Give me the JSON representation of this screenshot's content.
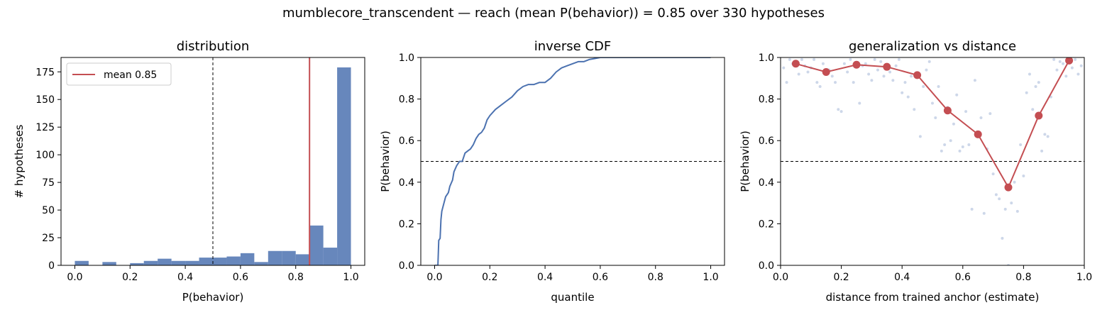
{
  "suptitle": "mumblecore_transcendent  —  reach (mean P(behavior)) = 0.85  over 330 hypotheses",
  "colors": {
    "blue": "#4c72b0",
    "red": "#c44e52",
    "scatter": "#b8c6e0"
  },
  "chart_data": [
    {
      "type": "bar",
      "title": "distribution",
      "xlabel": "P(behavior)",
      "ylabel": "# hypotheses",
      "xlim": [
        -0.05,
        1.05
      ],
      "ylim": [
        0,
        188
      ],
      "xticks": [
        "0.0",
        "0.2",
        "0.4",
        "0.6",
        "0.8",
        "1.0"
      ],
      "yticks": [
        "0",
        "25",
        "50",
        "75",
        "100",
        "125",
        "150",
        "175"
      ],
      "bin_width": 0.05,
      "bin_starts": [
        0.0,
        0.05,
        0.1,
        0.15,
        0.2,
        0.25,
        0.3,
        0.35,
        0.4,
        0.45,
        0.5,
        0.55,
        0.6,
        0.65,
        0.7,
        0.75,
        0.8,
        0.85,
        0.9,
        0.95
      ],
      "values": [
        4,
        0,
        3,
        0,
        2,
        4,
        6,
        4,
        4,
        7,
        7,
        8,
        11,
        3,
        13,
        13,
        10,
        36,
        16,
        179
      ],
      "threshold": 0.5,
      "mean": 0.85,
      "legend": {
        "label": "mean 0.85",
        "position": "upper-left"
      }
    },
    {
      "type": "line",
      "title": "inverse CDF",
      "xlabel": "quantile",
      "ylabel": "P(behavior)",
      "xlim": [
        -0.05,
        1.05
      ],
      "ylim": [
        0,
        1
      ],
      "xticks": [
        "0.0",
        "0.2",
        "0.4",
        "0.6",
        "0.8",
        "1.0"
      ],
      "yticks": [
        "0.0",
        "0.2",
        "0.4",
        "0.6",
        "0.8",
        "1.0"
      ],
      "threshold": 0.5,
      "x": [
        0.0,
        0.006,
        0.012,
        0.015,
        0.02,
        0.023,
        0.026,
        0.03,
        0.04,
        0.05,
        0.055,
        0.065,
        0.07,
        0.08,
        0.09,
        0.1,
        0.11,
        0.12,
        0.13,
        0.14,
        0.15,
        0.16,
        0.17,
        0.18,
        0.19,
        0.2,
        0.22,
        0.24,
        0.26,
        0.28,
        0.3,
        0.32,
        0.34,
        0.36,
        0.38,
        0.4,
        0.42,
        0.44,
        0.46,
        0.48,
        0.5,
        0.52,
        0.54,
        0.56,
        0.58,
        0.6,
        0.7,
        0.8,
        0.9,
        1.0
      ],
      "y": [
        0.0,
        0.0,
        0.0,
        0.12,
        0.13,
        0.22,
        0.26,
        0.28,
        0.33,
        0.35,
        0.38,
        0.41,
        0.45,
        0.48,
        0.5,
        0.5,
        0.54,
        0.55,
        0.56,
        0.58,
        0.61,
        0.63,
        0.64,
        0.66,
        0.7,
        0.72,
        0.75,
        0.77,
        0.79,
        0.81,
        0.84,
        0.86,
        0.87,
        0.87,
        0.88,
        0.88,
        0.9,
        0.93,
        0.95,
        0.96,
        0.97,
        0.98,
        0.98,
        0.99,
        0.995,
        1.0,
        1.0,
        1.0,
        1.0,
        1.0
      ]
    },
    {
      "type": "line",
      "title": "generalization vs distance",
      "xlabel": "distance from trained anchor (estimate)",
      "ylabel": "P(behavior)",
      "xlim": [
        0,
        1
      ],
      "ylim": [
        0,
        1
      ],
      "xticks": [
        "0.0",
        "0.2",
        "0.4",
        "0.6",
        "0.8",
        "1.0"
      ],
      "yticks": [
        "0.0",
        "0.2",
        "0.4",
        "0.6",
        "0.8",
        "1.0"
      ],
      "threshold": 0.5,
      "x": [
        0.05,
        0.15,
        0.25,
        0.35,
        0.45,
        0.55,
        0.65,
        0.75,
        0.85,
        0.95
      ],
      "y": [
        0.97,
        0.93,
        0.965,
        0.955,
        0.915,
        0.745,
        0.63,
        0.375,
        0.72,
        0.985
      ],
      "scatter": [
        [
          0.01,
          0.95
        ],
        [
          0.02,
          0.88
        ],
        [
          0.03,
          0.99
        ],
        [
          0.04,
          0.97
        ],
        [
          0.06,
          0.92
        ],
        [
          0.07,
          0.99
        ],
        [
          0.08,
          0.96
        ],
        [
          0.09,
          0.93
        ],
        [
          0.1,
          0.95
        ],
        [
          0.11,
          0.99
        ],
        [
          0.12,
          0.88
        ],
        [
          0.13,
          0.86
        ],
        [
          0.14,
          0.97
        ],
        [
          0.16,
          0.94
        ],
        [
          0.17,
          0.91
        ],
        [
          0.18,
          0.88
        ],
        [
          0.19,
          0.75
        ],
        [
          0.2,
          0.74
        ],
        [
          0.21,
          0.97
        ],
        [
          0.22,
          0.93
        ],
        [
          0.23,
          0.99
        ],
        [
          0.24,
          0.88
        ],
        [
          0.26,
          0.78
        ],
        [
          0.27,
          0.96
        ],
        [
          0.28,
          0.97
        ],
        [
          0.29,
          0.92
        ],
        [
          0.3,
          0.89
        ],
        [
          0.31,
          0.99
        ],
        [
          0.32,
          0.94
        ],
        [
          0.33,
          0.98
        ],
        [
          0.34,
          0.91
        ],
        [
          0.36,
          0.93
        ],
        [
          0.37,
          0.89
        ],
        [
          0.38,
          0.96
        ],
        [
          0.39,
          0.99
        ],
        [
          0.4,
          0.83
        ],
        [
          0.41,
          0.88
        ],
        [
          0.42,
          0.81
        ],
        [
          0.43,
          0.91
        ],
        [
          0.44,
          0.75
        ],
        [
          0.46,
          0.62
        ],
        [
          0.47,
          0.86
        ],
        [
          0.48,
          0.94
        ],
        [
          0.49,
          0.98
        ],
        [
          0.5,
          0.78
        ],
        [
          0.51,
          0.71
        ],
        [
          0.52,
          0.86
        ],
        [
          0.53,
          0.55
        ],
        [
          0.54,
          0.58
        ],
        [
          0.55,
          0.76
        ],
        [
          0.56,
          0.6
        ],
        [
          0.57,
          0.68
        ],
        [
          0.58,
          0.82
        ],
        [
          0.59,
          0.55
        ],
        [
          0.6,
          0.57
        ],
        [
          0.61,
          0.74
        ],
        [
          0.62,
          0.58
        ],
        [
          0.63,
          0.27
        ],
        [
          0.64,
          0.89
        ],
        [
          0.66,
          0.71
        ],
        [
          0.67,
          0.25
        ],
        [
          0.68,
          0.56
        ],
        [
          0.69,
          0.73
        ],
        [
          0.7,
          0.44
        ],
        [
          0.71,
          0.34
        ],
        [
          0.72,
          0.32
        ],
        [
          0.73,
          0.13
        ],
        [
          0.74,
          0.27
        ],
        [
          0.75,
          0.0
        ],
        [
          0.76,
          0.3
        ],
        [
          0.77,
          0.4
        ],
        [
          0.78,
          0.26
        ],
        [
          0.79,
          0.58
        ],
        [
          0.8,
          0.43
        ],
        [
          0.81,
          0.83
        ],
        [
          0.82,
          0.92
        ],
        [
          0.83,
          0.75
        ],
        [
          0.84,
          0.86
        ],
        [
          0.85,
          0.88
        ],
        [
          0.86,
          0.55
        ],
        [
          0.87,
          0.63
        ],
        [
          0.88,
          0.62
        ],
        [
          0.89,
          0.81
        ],
        [
          0.9,
          0.99
        ],
        [
          0.91,
          0.94
        ],
        [
          0.92,
          0.98
        ],
        [
          0.93,
          0.97
        ],
        [
          0.94,
          0.91
        ],
        [
          0.96,
          0.95
        ],
        [
          0.97,
          0.99
        ],
        [
          0.98,
          0.92
        ],
        [
          0.99,
          0.96
        ]
      ]
    }
  ]
}
